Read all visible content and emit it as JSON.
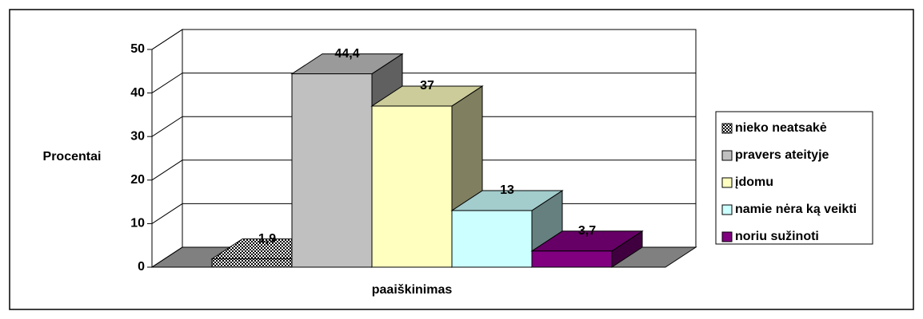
{
  "chart_data": {
    "type": "bar3d",
    "y_label": "Procentai",
    "categories": [
      "paaiškinimas"
    ],
    "series": [
      {
        "name": "nieko neatsakė",
        "color": "#000000",
        "pattern": "checker",
        "values": [
          1.9
        ],
        "value_labels": [
          "1,9"
        ]
      },
      {
        "name": "pravers ateityje",
        "color": "#c0c0c0",
        "values": [
          44.4
        ],
        "value_labels": [
          "44,4"
        ]
      },
      {
        "name": "įdomu",
        "color": "#ffffc0",
        "values": [
          37
        ],
        "value_labels": [
          "37"
        ]
      },
      {
        "name": "namie nėra ką veikti",
        "color": "#ccffff",
        "values": [
          13
        ],
        "value_labels": [
          "13"
        ]
      },
      {
        "name": "noriu sužinoti",
        "color": "#800080",
        "values": [
          3.7
        ],
        "value_labels": [
          "3,7"
        ]
      }
    ],
    "ylim": [
      0,
      50
    ],
    "yticks": [
      0,
      10,
      20,
      30,
      40,
      50
    ],
    "grid": true,
    "legend": "right"
  }
}
